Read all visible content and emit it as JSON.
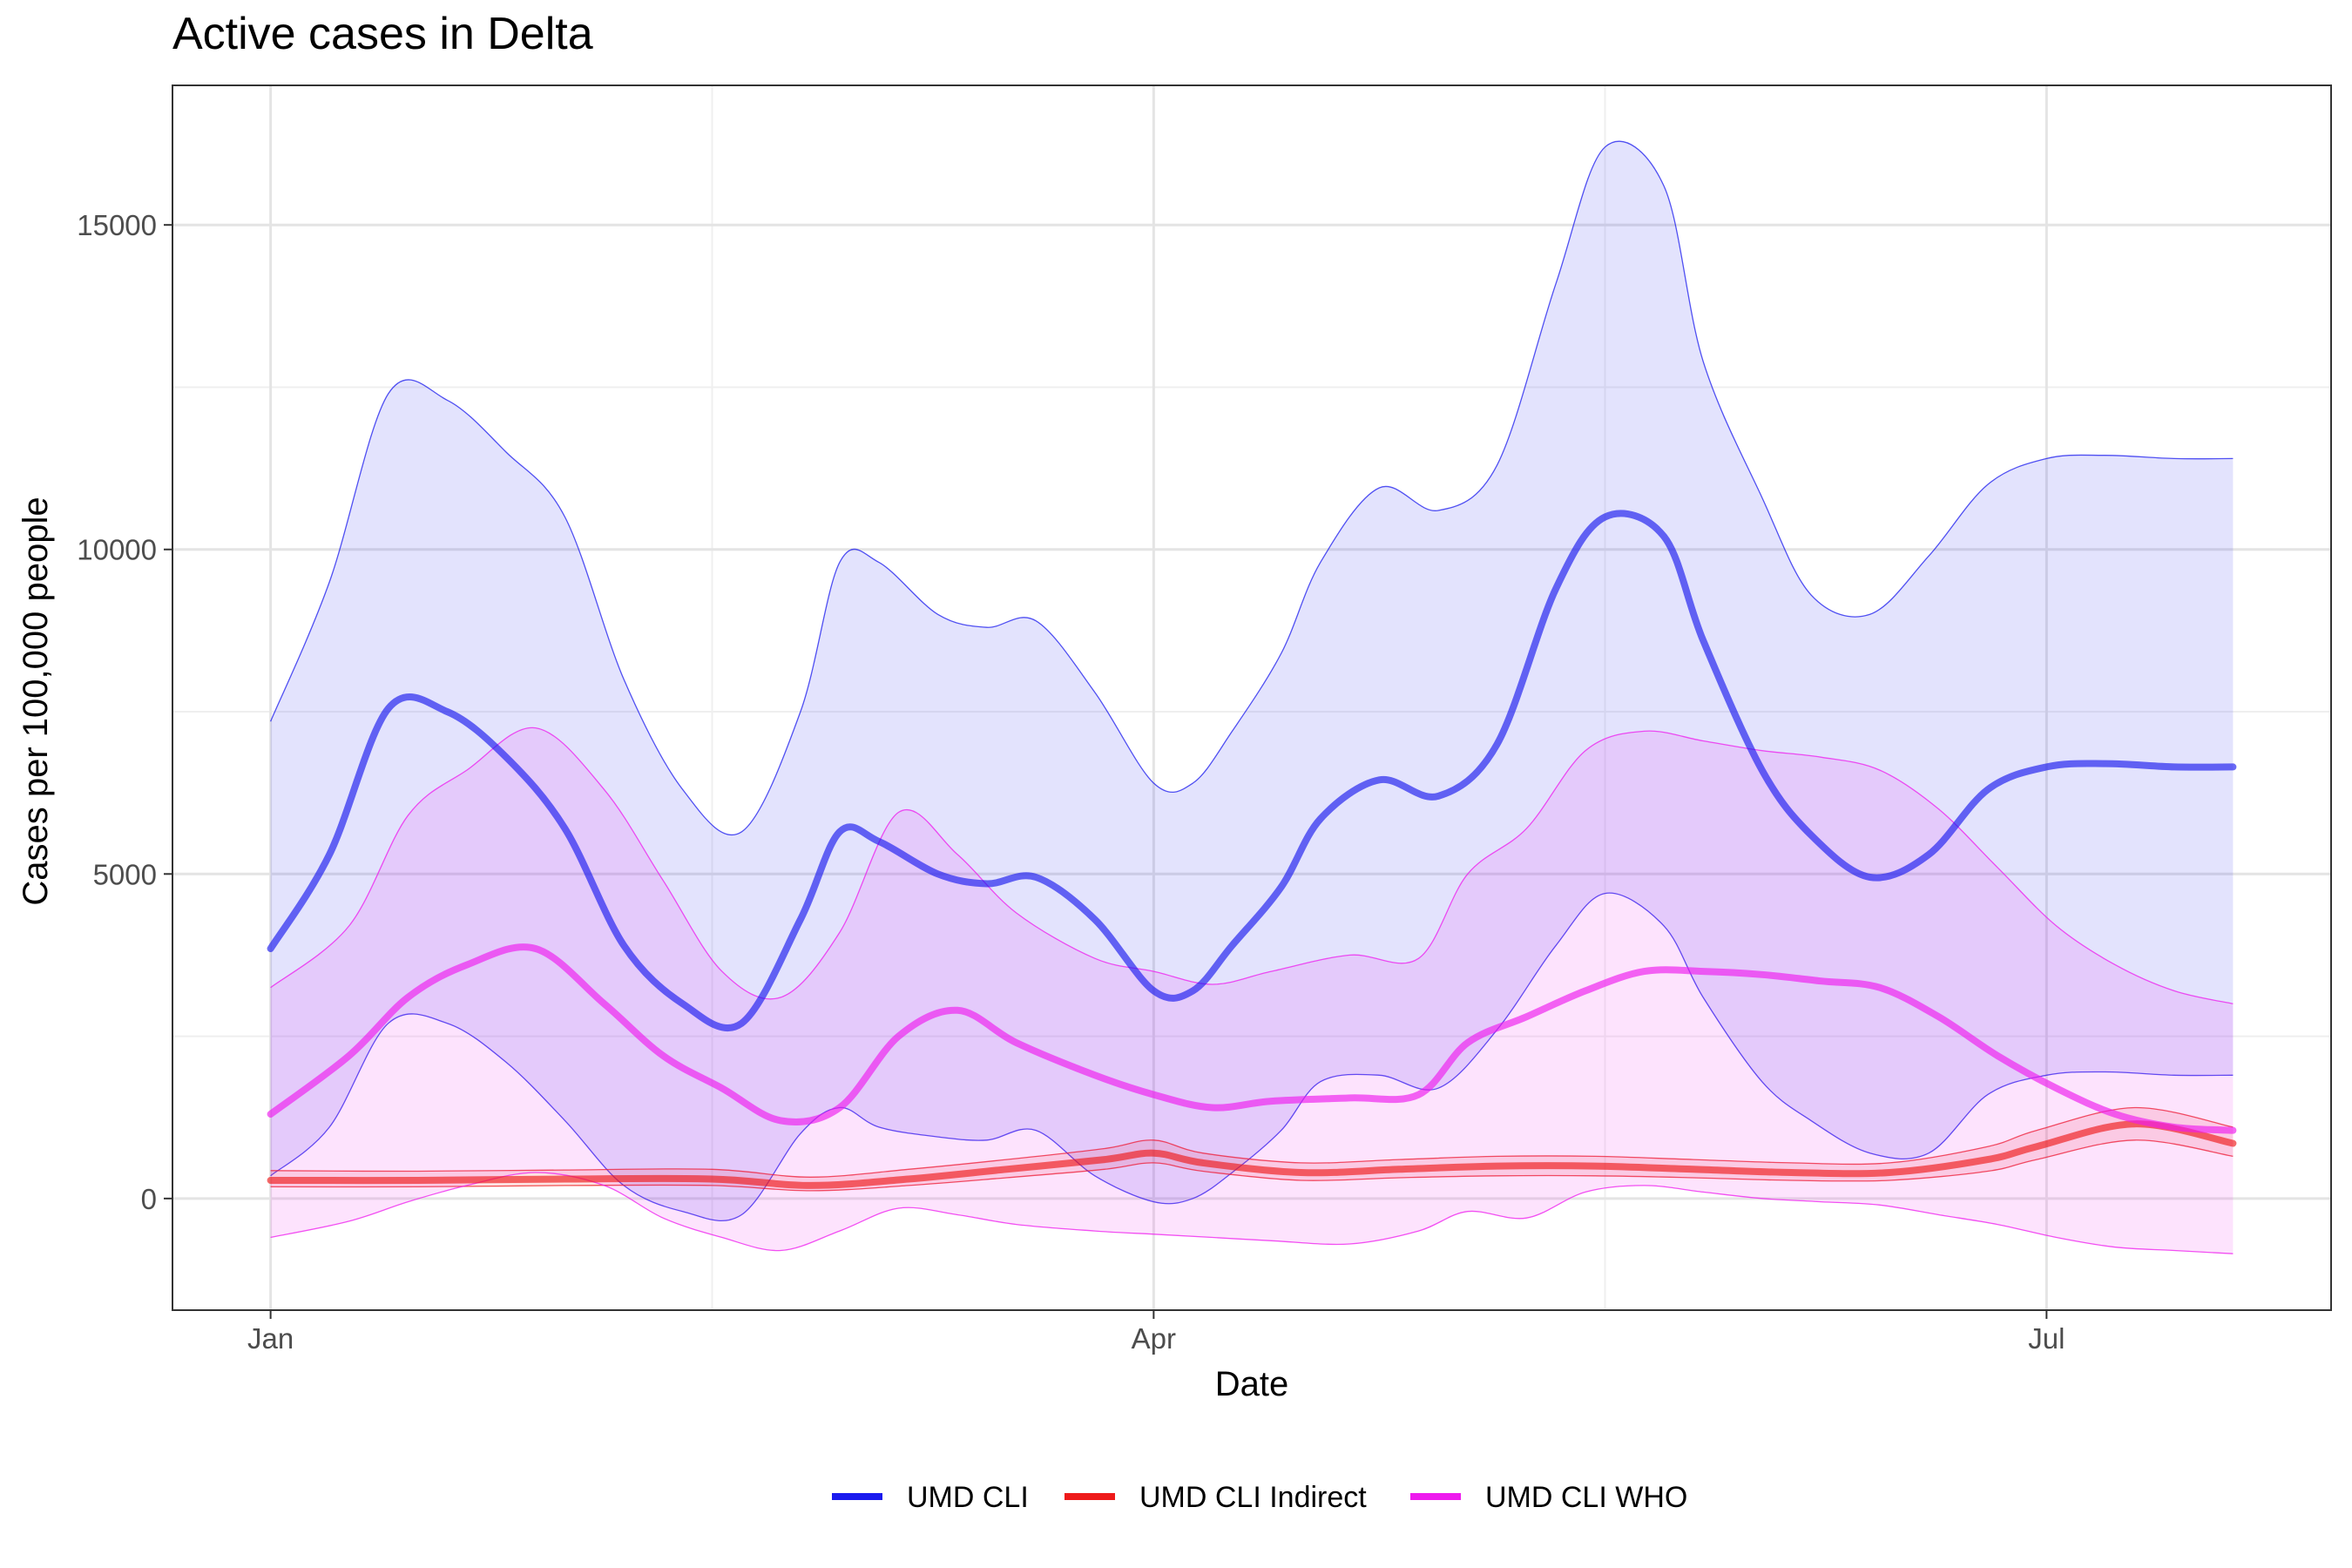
{
  "chart_data": {
    "type": "line",
    "title": "Active cases in Delta",
    "xlabel": "Date",
    "ylabel": "Cases per 100,000 people",
    "x_ticks": [
      {
        "label": "Jan",
        "day": 0
      },
      {
        "label": "Apr",
        "day": 90
      },
      {
        "label": "Jul",
        "day": 181
      }
    ],
    "x_minor_days": [
      45,
      136
    ],
    "xlim": [
      -10,
      210
    ],
    "y_ticks": [
      0,
      5000,
      10000,
      15000
    ],
    "ylim": [
      -1720,
      17150
    ],
    "grid": true,
    "legend_position": "bottom",
    "series": [
      {
        "name": "UMD CLI",
        "color": "#1a1aee",
        "x": [
          0,
          6,
          12,
          18,
          24,
          30,
          36,
          42,
          48,
          54,
          58,
          62,
          68,
          73,
          78,
          84,
          90,
          94,
          98,
          103,
          107,
          113,
          119,
          125,
          131,
          136,
          142,
          146,
          152,
          157,
          163,
          169,
          175,
          181,
          187,
          194,
          200
        ],
        "values": [
          3850,
          5300,
          7550,
          7500,
          6800,
          5700,
          3900,
          3000,
          2700,
          4300,
          5650,
          5500,
          5000,
          4850,
          4950,
          4300,
          3200,
          3200,
          3900,
          4800,
          5850,
          6450,
          6200,
          7000,
          9400,
          10500,
          10200,
          8600,
          6600,
          5600,
          4950,
          5300,
          6300,
          6650,
          6700,
          6650,
          6650
        ],
        "upper": [
          7350,
          9500,
          12400,
          12300,
          11500,
          10500,
          8000,
          6300,
          5650,
          7500,
          9800,
          9800,
          9000,
          8800,
          8900,
          7800,
          6400,
          6400,
          7200,
          8400,
          9800,
          10950,
          10600,
          11300,
          14100,
          16200,
          15600,
          12900,
          10800,
          9300,
          9000,
          9900,
          11000,
          11400,
          11450,
          11400,
          11400
        ],
        "lower": [
          350,
          1100,
          2700,
          2700,
          2100,
          1200,
          200,
          -200,
          -250,
          1000,
          1400,
          1100,
          950,
          900,
          1050,
          350,
          -50,
          0,
          400,
          1050,
          1800,
          1900,
          1700,
          2600,
          3900,
          4700,
          4200,
          3100,
          1800,
          1200,
          700,
          700,
          1600,
          1900,
          1950,
          1900,
          1900
        ]
      },
      {
        "name": "UMD CLI Indirect",
        "color": "#ee1a1a",
        "x": [
          0,
          15,
          30,
          45,
          55,
          65,
          75,
          85,
          90,
          95,
          105,
          115,
          125,
          135,
          145,
          155,
          165,
          175,
          180,
          190,
          200
        ],
        "values": [
          280,
          280,
          300,
          300,
          200,
          300,
          450,
          600,
          700,
          550,
          400,
          450,
          500,
          500,
          450,
          400,
          400,
          600,
          800,
          1150,
          850
        ],
        "upper": [
          430,
          420,
          440,
          450,
          330,
          450,
          600,
          770,
          900,
          700,
          550,
          600,
          650,
          650,
          600,
          550,
          550,
          800,
          1050,
          1400,
          1100
        ],
        "lower": [
          180,
          180,
          200,
          200,
          120,
          200,
          320,
          450,
          550,
          420,
          280,
          320,
          350,
          350,
          320,
          280,
          280,
          420,
          600,
          900,
          650
        ]
      },
      {
        "name": "UMD CLI WHO",
        "color": "#ee1aee",
        "x": [
          0,
          8,
          14,
          20,
          27,
          34,
          40,
          46,
          52,
          58,
          64,
          70,
          76,
          84,
          90,
          96,
          102,
          110,
          117,
          122,
          128,
          134,
          140,
          146,
          152,
          158,
          164,
          170,
          176,
          182,
          188,
          194,
          200
        ],
        "values": [
          1300,
          2200,
          3100,
          3600,
          3850,
          3000,
          2200,
          1700,
          1200,
          1400,
          2500,
          2900,
          2400,
          1900,
          1600,
          1400,
          1500,
          1550,
          1600,
          2400,
          2800,
          3200,
          3500,
          3500,
          3450,
          3350,
          3250,
          2800,
          2200,
          1700,
          1300,
          1100,
          1050
        ],
        "upper": [
          3250,
          4200,
          5900,
          6600,
          7250,
          6300,
          4900,
          3500,
          3100,
          4100,
          5950,
          5300,
          4400,
          3700,
          3500,
          3300,
          3500,
          3750,
          3700,
          5000,
          5700,
          6900,
          7200,
          7050,
          6900,
          6800,
          6600,
          6000,
          5100,
          4200,
          3600,
          3200,
          3000
        ],
        "lower": [
          -600,
          -350,
          -50,
          200,
          400,
          200,
          -300,
          -600,
          -800,
          -500,
          -150,
          -250,
          -400,
          -500,
          -550,
          -600,
          -650,
          -700,
          -500,
          -200,
          -300,
          100,
          200,
          100,
          0,
          -50,
          -100,
          -250,
          -400,
          -600,
          -750,
          -800,
          -850
        ]
      }
    ]
  }
}
